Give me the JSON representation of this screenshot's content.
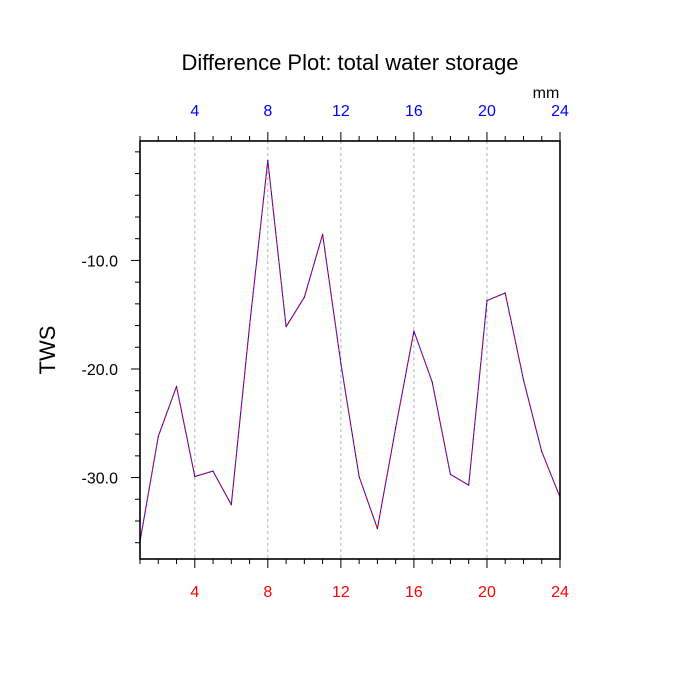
{
  "chart_data": {
    "type": "line",
    "title": "Difference Plot: total water storage",
    "ylabel": "TWS",
    "units": "mm",
    "xlim": [
      1,
      24
    ],
    "ylim": [
      -37.5,
      1.0
    ],
    "x_ticks": [
      4,
      8,
      12,
      16,
      20,
      24
    ],
    "x_tick_labels": [
      "4",
      "8",
      "12",
      "16",
      "20",
      "24"
    ],
    "y_ticks": [
      -10,
      -20,
      -30
    ],
    "y_tick_labels": [
      "-10.0",
      "-20.0",
      "-30.0"
    ],
    "grid": "dashed vertical at labeled x ticks",
    "x": [
      1,
      2,
      3,
      4,
      5,
      6,
      7,
      8,
      9,
      10,
      11,
      12,
      13,
      14,
      15,
      16,
      17,
      18,
      19,
      20,
      21,
      22,
      23,
      24
    ],
    "series": [
      {
        "values": [
          -35.9,
          -26.2,
          -21.6,
          -29.9,
          -29.4,
          -32.5,
          -16.0,
          -0.8,
          -16.1,
          -13.4,
          -7.6,
          -19.5,
          -29.9,
          -34.7,
          -25.4,
          -16.5,
          -21.2,
          -29.7,
          -30.7,
          -13.7,
          -13.0,
          -21.0,
          -27.6,
          -31.8
        ],
        "color_dash": "#ff0000",
        "color_line": "#0000ff"
      }
    ],
    "colors": {
      "bottom_tick_labels": "#ff0000",
      "top_tick_labels": "#0000ff",
      "axes": "#000000",
      "grid": "#aaaaaa"
    }
  }
}
